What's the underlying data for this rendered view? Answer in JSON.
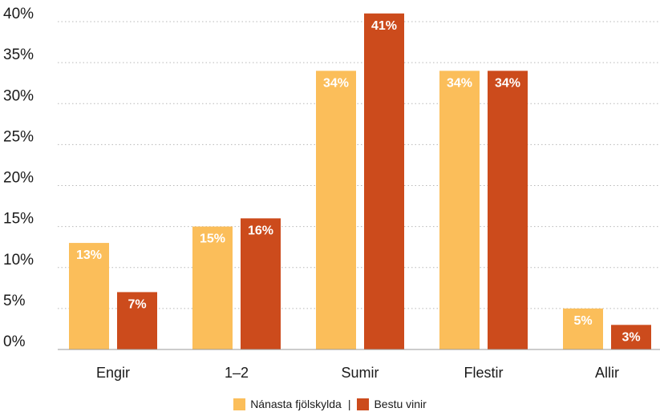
{
  "chart_data": {
    "type": "bar",
    "categories": [
      "Engir",
      "1–2",
      "Sumir",
      "Flestir",
      "Allir"
    ],
    "series": [
      {
        "name": "Nánasta fjölskylda",
        "color": "#FBBE5A",
        "values": [
          13,
          15,
          34,
          34,
          5
        ],
        "labels": [
          "13%",
          "15%",
          "34%",
          "34%",
          "5%"
        ]
      },
      {
        "name": "Bestu vinir",
        "color": "#CC4B1C",
        "values": [
          7,
          16,
          41,
          34,
          3
        ],
        "labels": [
          "7%",
          "16%",
          "41%",
          "34%",
          "3%"
        ]
      }
    ],
    "ylim": [
      0,
      40
    ],
    "yticks": [
      0,
      5,
      10,
      15,
      20,
      25,
      30,
      35,
      40
    ],
    "ytick_labels": [
      "0%",
      "5%",
      "10%",
      "15%",
      "20%",
      "25%",
      "30%",
      "35%",
      "40%"
    ],
    "grid": "horizontal-dotted",
    "legend_position": "bottom-center",
    "legend_separator": "|"
  }
}
